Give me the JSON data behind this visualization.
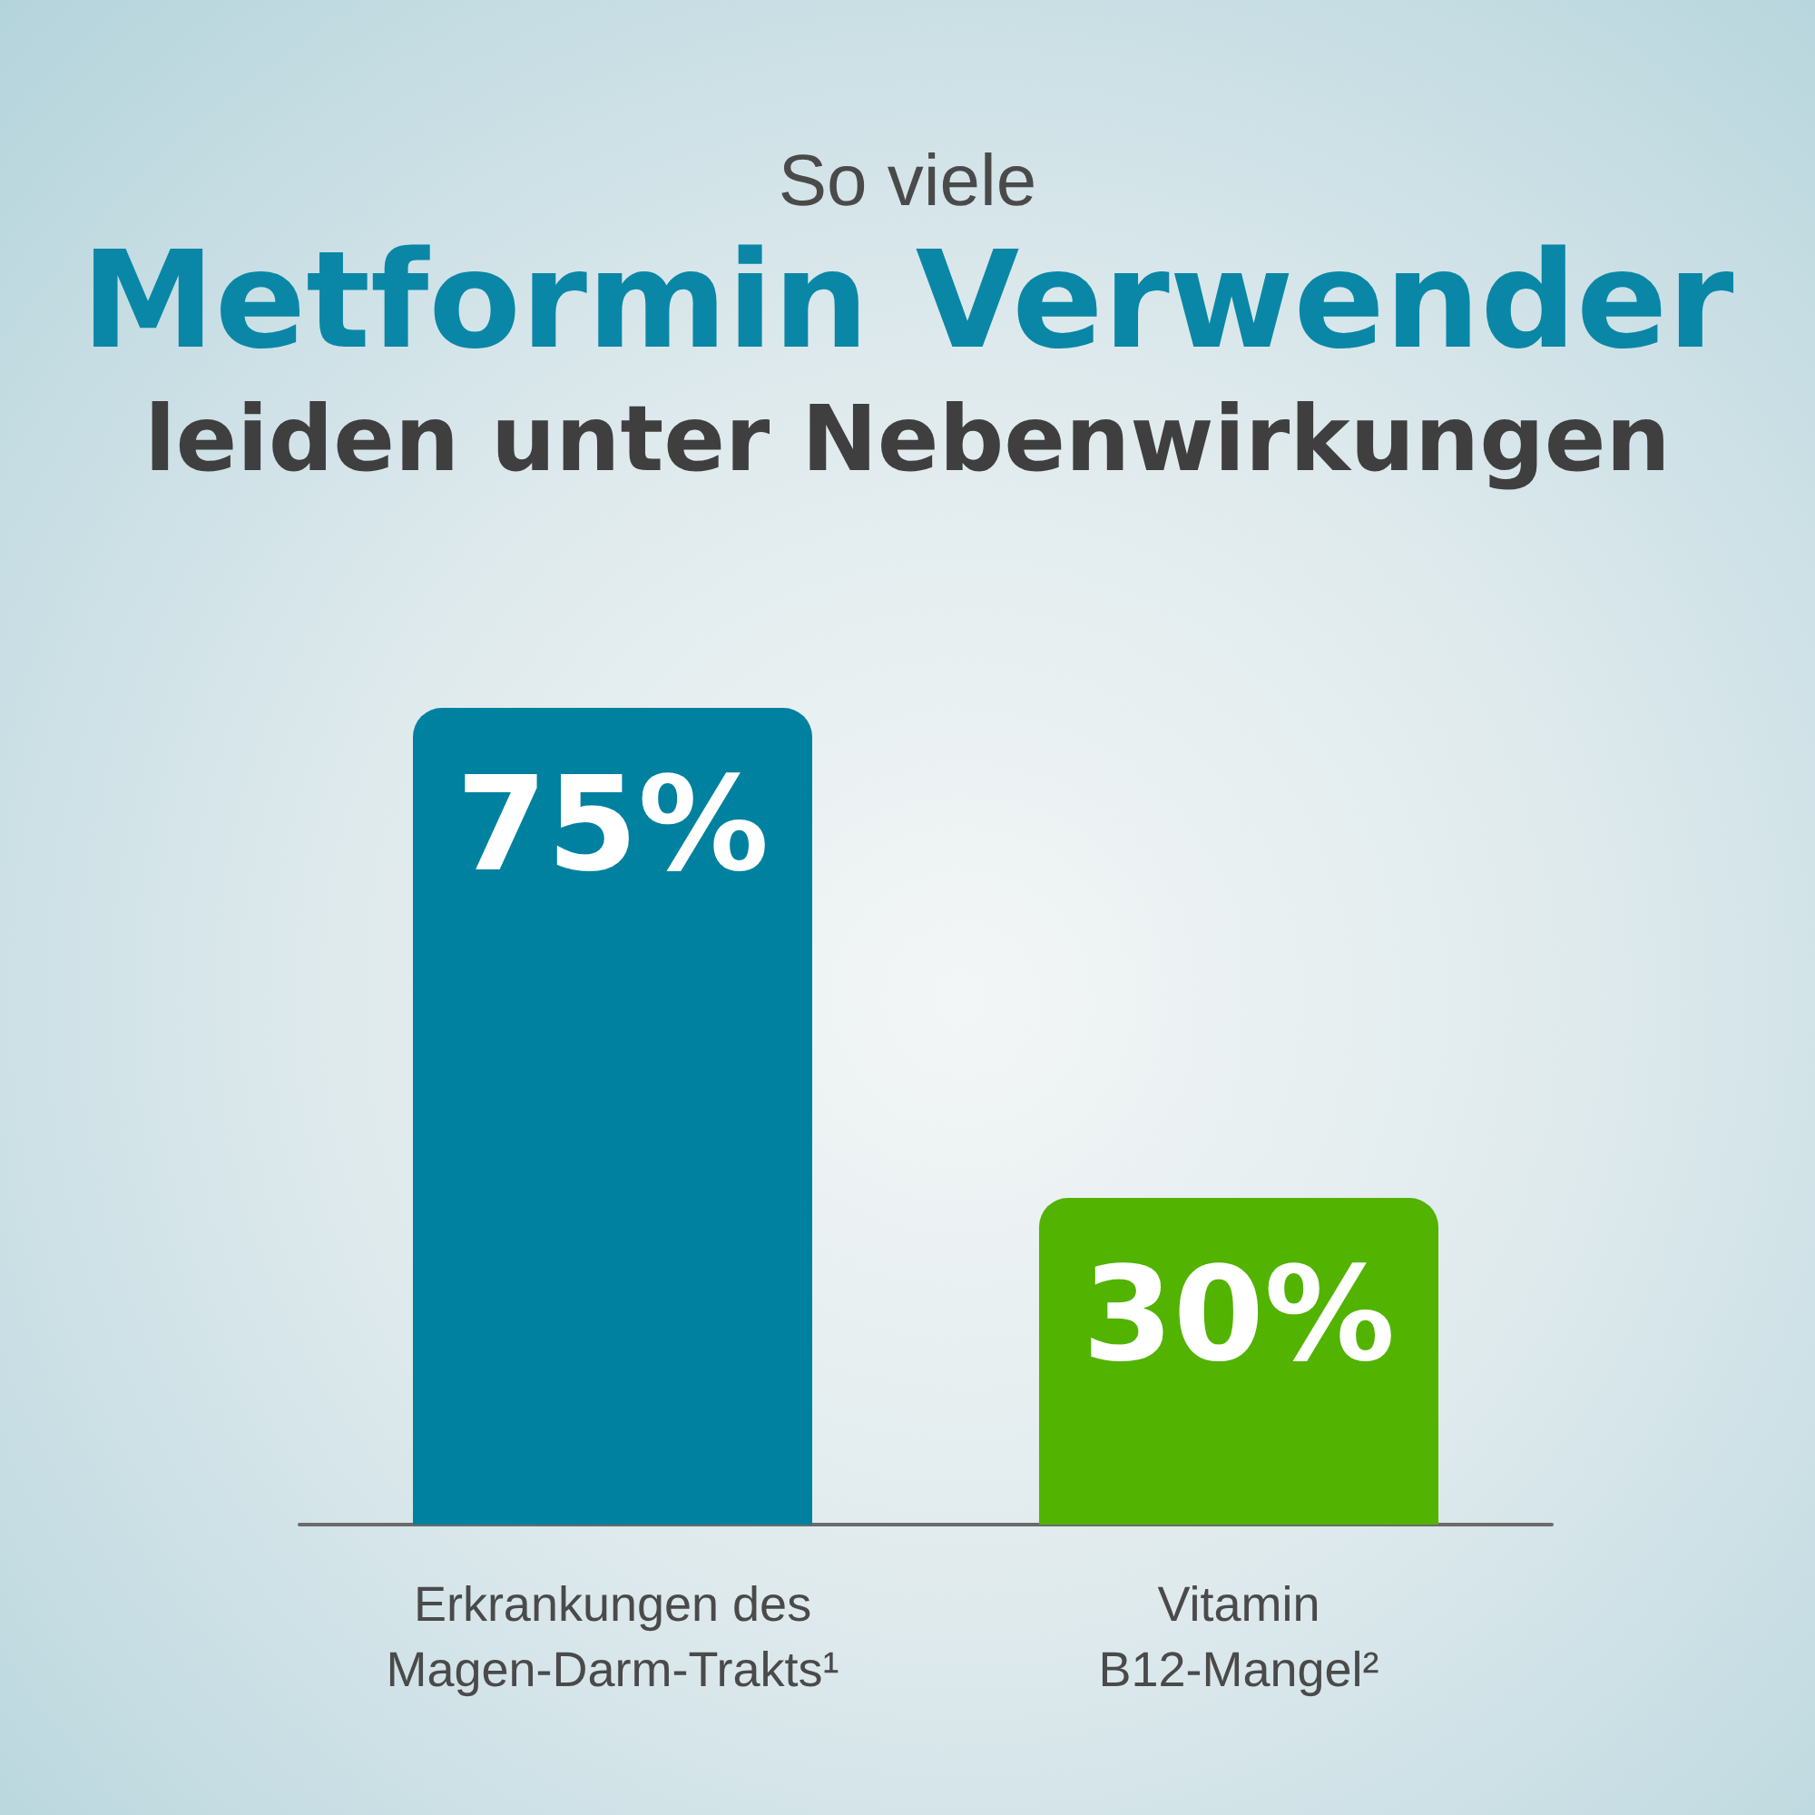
{
  "chart_data": {
    "type": "bar",
    "title": "So viele\nMetformin Verwender\nleiden unter Nebenwirkungen",
    "categories": [
      "Erkrankungen des\nMagen-Darm-Trakts¹",
      "Vitamin\nB12-Mangel²"
    ],
    "values": [
      75,
      30
    ],
    "colors": [
      "#00819f",
      "#52b300"
    ],
    "value_labels": [
      "75%",
      "30%"
    ]
  }
}
